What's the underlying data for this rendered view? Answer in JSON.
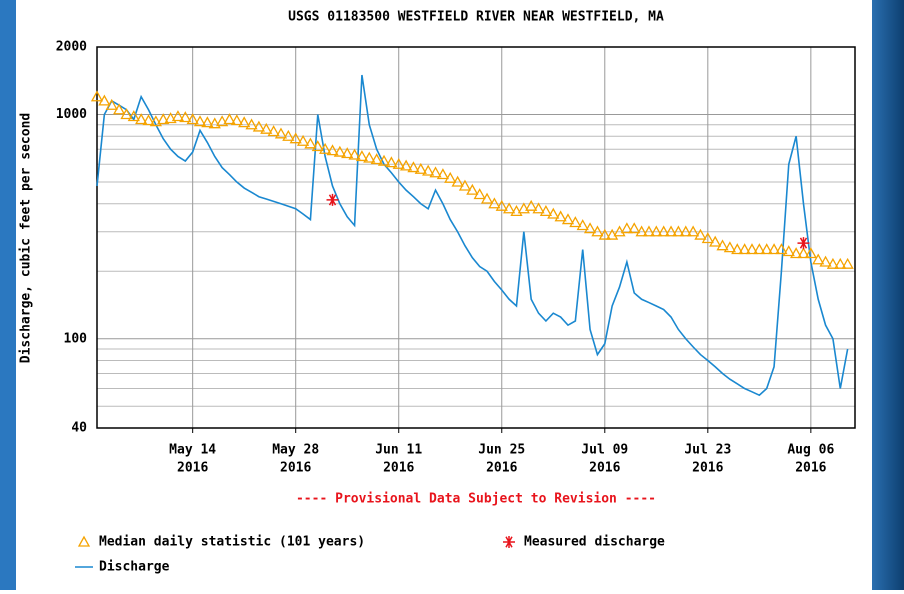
{
  "chart_data": {
    "type": "line",
    "title": "USGS 01183500 WESTFIELD RIVER NEAR WESTFIELD, MA",
    "subtitle": "---- Provisional Data Subject to Revision ----",
    "y_label": "Discharge, cubic feet per second",
    "log_scale_y": true,
    "grid": true,
    "xlim": [
      "2016-05-01",
      "2016-08-12"
    ],
    "xticks": [
      {
        "value": "2016-05-14",
        "label": [
          "May 14",
          "2016"
        ]
      },
      {
        "value": "2016-05-28",
        "label": [
          "May 28",
          "2016"
        ]
      },
      {
        "value": "2016-06-11",
        "label": [
          "Jun 11",
          "2016"
        ]
      },
      {
        "value": "2016-06-25",
        "label": [
          "Jun 25",
          "2016"
        ]
      },
      {
        "value": "2016-07-09",
        "label": [
          "Jul 09",
          "2016"
        ]
      },
      {
        "value": "2016-07-23",
        "label": [
          "Jul 23",
          "2016"
        ]
      },
      {
        "value": "2016-08-06",
        "label": [
          "Aug 06",
          "2016"
        ]
      }
    ],
    "ylim": [
      40,
      2000
    ],
    "yticks": [
      40,
      100,
      1000,
      2000
    ],
    "minor_yticks": [
      50,
      60,
      70,
      80,
      90,
      200,
      300,
      400,
      500,
      600,
      700,
      800,
      900
    ],
    "x": [
      "2016-05-01",
      "2016-05-02",
      "2016-05-03",
      "2016-05-04",
      "2016-05-05",
      "2016-05-06",
      "2016-05-07",
      "2016-05-08",
      "2016-05-09",
      "2016-05-10",
      "2016-05-11",
      "2016-05-12",
      "2016-05-13",
      "2016-05-14",
      "2016-05-15",
      "2016-05-16",
      "2016-05-17",
      "2016-05-18",
      "2016-05-19",
      "2016-05-20",
      "2016-05-21",
      "2016-05-22",
      "2016-05-23",
      "2016-05-24",
      "2016-05-25",
      "2016-05-26",
      "2016-05-27",
      "2016-05-28",
      "2016-05-29",
      "2016-05-30",
      "2016-05-31",
      "2016-06-01",
      "2016-06-02",
      "2016-06-03",
      "2016-06-04",
      "2016-06-05",
      "2016-06-06",
      "2016-06-07",
      "2016-06-08",
      "2016-06-09",
      "2016-06-10",
      "2016-06-11",
      "2016-06-12",
      "2016-06-13",
      "2016-06-14",
      "2016-06-15",
      "2016-06-16",
      "2016-06-17",
      "2016-06-18",
      "2016-06-19",
      "2016-06-20",
      "2016-06-21",
      "2016-06-22",
      "2016-06-23",
      "2016-06-24",
      "2016-06-25",
      "2016-06-26",
      "2016-06-27",
      "2016-06-28",
      "2016-06-29",
      "2016-06-30",
      "2016-07-01",
      "2016-07-02",
      "2016-07-03",
      "2016-07-04",
      "2016-07-05",
      "2016-07-06",
      "2016-07-07",
      "2016-07-08",
      "2016-07-09",
      "2016-07-10",
      "2016-07-11",
      "2016-07-12",
      "2016-07-13",
      "2016-07-14",
      "2016-07-15",
      "2016-07-16",
      "2016-07-17",
      "2016-07-18",
      "2016-07-19",
      "2016-07-20",
      "2016-07-21",
      "2016-07-22",
      "2016-07-23",
      "2016-07-24",
      "2016-07-25",
      "2016-07-26",
      "2016-07-27",
      "2016-07-28",
      "2016-07-29",
      "2016-07-30",
      "2016-07-31",
      "2016-08-01",
      "2016-08-02",
      "2016-08-03",
      "2016-08-04",
      "2016-08-05",
      "2016-08-06",
      "2016-08-07",
      "2016-08-08",
      "2016-08-09",
      "2016-08-10",
      "2016-08-11"
    ],
    "series": [
      {
        "name": "Discharge",
        "color": "#1a88d0",
        "marker": "line",
        "values": [
          480,
          1000,
          1150,
          1100,
          1050,
          950,
          1200,
          1050,
          900,
          780,
          700,
          650,
          620,
          680,
          850,
          750,
          650,
          580,
          540,
          500,
          470,
          450,
          430,
          420,
          410,
          400,
          390,
          380,
          360,
          340,
          1000,
          650,
          480,
          400,
          350,
          320,
          1500,
          900,
          700,
          600,
          550,
          500,
          460,
          430,
          400,
          380,
          460,
          400,
          340,
          300,
          260,
          230,
          210,
          200,
          180,
          165,
          150,
          140,
          300,
          150,
          130,
          120,
          130,
          125,
          115,
          120,
          250,
          110,
          85,
          95,
          140,
          170,
          220,
          160,
          150,
          145,
          140,
          135,
          125,
          110,
          100,
          92,
          85,
          80,
          75,
          70,
          66,
          63,
          60,
          58,
          56,
          60,
          75,
          200,
          600,
          800,
          400,
          220,
          150,
          115,
          100,
          60,
          90
        ]
      },
      {
        "name": "Median daily statistic (101 years)",
        "color": "#f5a300",
        "marker": "triangle",
        "values": [
          1200,
          1150,
          1100,
          1050,
          1000,
          980,
          950,
          940,
          930,
          950,
          960,
          980,
          970,
          950,
          930,
          920,
          910,
          930,
          950,
          940,
          920,
          900,
          880,
          860,
          840,
          820,
          800,
          780,
          760,
          740,
          720,
          700,
          690,
          680,
          670,
          660,
          650,
          640,
          630,
          620,
          610,
          600,
          590,
          580,
          570,
          560,
          550,
          540,
          520,
          500,
          480,
          460,
          440,
          420,
          400,
          390,
          380,
          370,
          380,
          390,
          380,
          370,
          360,
          350,
          340,
          330,
          320,
          310,
          300,
          290,
          290,
          300,
          310,
          310,
          300,
          300,
          300,
          300,
          300,
          300,
          300,
          300,
          290,
          280,
          270,
          260,
          255,
          250,
          250,
          250,
          250,
          250,
          250,
          250,
          245,
          240,
          240,
          240,
          225,
          220,
          215,
          215,
          215
        ]
      },
      {
        "name": "Measured discharge",
        "color": "#e8141c",
        "marker": "star",
        "x": [
          "2016-06-02",
          "2016-08-05"
        ],
        "values": [
          416,
          267
        ]
      }
    ]
  }
}
